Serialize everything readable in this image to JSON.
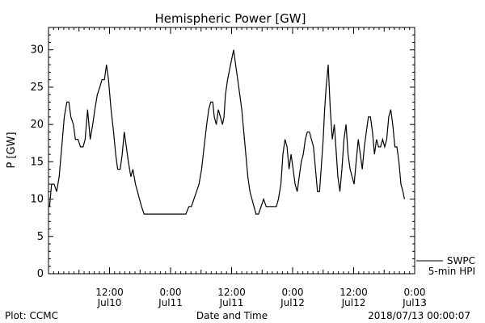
{
  "chart_data": {
    "type": "line",
    "title": "Hemispheric Power [GW]",
    "ylabel": "P [GW]",
    "xlabel": "Date and Time",
    "ylim": [
      0,
      33
    ],
    "y_ticks": [
      0,
      5,
      10,
      15,
      20,
      25,
      30
    ],
    "xlim_hours": [
      0,
      72
    ],
    "x_ticks": [
      {
        "time": "12:00",
        "day": "Jul10",
        "hour": 12
      },
      {
        "time": "0:00",
        "day": "Jul11",
        "hour": 24
      },
      {
        "time": "12:00",
        "day": "Jul11",
        "hour": 36
      },
      {
        "time": "0:00",
        "day": "Jul12",
        "hour": 48
      },
      {
        "time": "12:00",
        "day": "Jul12",
        "hour": 60
      },
      {
        "time": "0:00",
        "day": "Jul13",
        "hour": 72
      }
    ],
    "legend": {
      "position": "bottom-right",
      "entries": [
        "SWPC",
        "5-min HPI"
      ]
    },
    "footer_left": "Plot: CCMC",
    "footer_right": "2018/07/13 00:00:07",
    "series": [
      {
        "name": "SWPC",
        "color": "#000000",
        "points": [
          [
            0.2,
            9
          ],
          [
            0.6,
            12
          ],
          [
            1.1,
            12
          ],
          [
            1.6,
            11
          ],
          [
            2.1,
            13
          ],
          [
            2.6,
            17
          ],
          [
            3.1,
            21
          ],
          [
            3.6,
            23
          ],
          [
            4.0,
            23
          ],
          [
            4.4,
            21
          ],
          [
            4.9,
            20
          ],
          [
            5.3,
            18
          ],
          [
            5.8,
            18
          ],
          [
            6.3,
            17
          ],
          [
            6.8,
            17
          ],
          [
            7.2,
            18
          ],
          [
            7.7,
            22
          ],
          [
            8.2,
            18
          ],
          [
            8.7,
            20
          ],
          [
            9.1,
            22
          ],
          [
            9.6,
            24
          ],
          [
            10.1,
            25
          ],
          [
            10.5,
            26
          ],
          [
            11.0,
            26
          ],
          [
            11.4,
            28
          ],
          [
            11.8,
            26
          ],
          [
            12.3,
            22
          ],
          [
            12.8,
            19
          ],
          [
            13.2,
            16
          ],
          [
            13.6,
            14
          ],
          [
            14.1,
            14
          ],
          [
            14.5,
            16
          ],
          [
            14.9,
            19
          ],
          [
            15.3,
            17
          ],
          [
            15.7,
            15
          ],
          [
            16.2,
            13
          ],
          [
            16.6,
            14
          ],
          [
            17.1,
            12
          ],
          [
            17.5,
            11
          ],
          [
            17.9,
            10
          ],
          [
            18.3,
            9
          ],
          [
            18.8,
            8
          ],
          [
            19.5,
            8
          ],
          [
            20.5,
            8
          ],
          [
            21.5,
            8
          ],
          [
            22.5,
            8
          ],
          [
            23.5,
            8
          ],
          [
            24.5,
            8
          ],
          [
            25.5,
            8
          ],
          [
            26.5,
            8
          ],
          [
            27.0,
            8
          ],
          [
            27.6,
            9
          ],
          [
            28.1,
            9
          ],
          [
            28.6,
            10
          ],
          [
            29.1,
            11
          ],
          [
            29.6,
            12
          ],
          [
            30.1,
            14
          ],
          [
            30.6,
            17
          ],
          [
            31.1,
            20
          ],
          [
            31.5,
            22
          ],
          [
            31.9,
            23
          ],
          [
            32.3,
            23
          ],
          [
            32.6,
            21
          ],
          [
            33.0,
            20
          ],
          [
            33.4,
            22
          ],
          [
            33.8,
            21
          ],
          [
            34.2,
            20
          ],
          [
            34.5,
            21
          ],
          [
            34.8,
            24
          ],
          [
            35.2,
            26
          ],
          [
            35.5,
            27
          ],
          [
            35.8,
            28
          ],
          [
            36.1,
            29
          ],
          [
            36.4,
            30
          ],
          [
            36.8,
            28
          ],
          [
            37.2,
            26
          ],
          [
            37.6,
            24
          ],
          [
            38.0,
            22
          ],
          [
            38.4,
            19
          ],
          [
            38.8,
            16
          ],
          [
            39.2,
            13
          ],
          [
            39.6,
            11
          ],
          [
            40.0,
            10
          ],
          [
            40.4,
            9
          ],
          [
            40.8,
            8
          ],
          [
            41.3,
            8
          ],
          [
            41.8,
            9
          ],
          [
            42.3,
            10
          ],
          [
            42.8,
            9
          ],
          [
            43.3,
            9
          ],
          [
            43.8,
            9
          ],
          [
            44.3,
            9
          ],
          [
            44.8,
            9
          ],
          [
            45.2,
            10
          ],
          [
            45.7,
            12
          ],
          [
            46.1,
            16
          ],
          [
            46.5,
            18
          ],
          [
            46.9,
            17
          ],
          [
            47.3,
            14
          ],
          [
            47.7,
            16
          ],
          [
            48.1,
            14
          ],
          [
            48.5,
            12
          ],
          [
            48.9,
            11
          ],
          [
            49.3,
            13
          ],
          [
            49.7,
            15
          ],
          [
            50.1,
            16
          ],
          [
            50.5,
            18
          ],
          [
            50.9,
            19
          ],
          [
            51.3,
            19
          ],
          [
            51.7,
            18
          ],
          [
            52.1,
            17
          ],
          [
            52.5,
            14
          ],
          [
            52.9,
            11
          ],
          [
            53.3,
            11
          ],
          [
            53.7,
            15
          ],
          [
            54.0,
            18
          ],
          [
            54.3,
            22
          ],
          [
            54.6,
            25
          ],
          [
            55.0,
            28
          ],
          [
            55.4,
            22
          ],
          [
            55.8,
            18
          ],
          [
            56.2,
            20
          ],
          [
            56.5,
            17
          ],
          [
            56.9,
            13
          ],
          [
            57.3,
            11
          ],
          [
            57.7,
            14
          ],
          [
            58.1,
            18
          ],
          [
            58.5,
            20
          ],
          [
            58.9,
            16
          ],
          [
            59.3,
            14
          ],
          [
            59.7,
            13
          ],
          [
            60.1,
            12
          ],
          [
            60.5,
            15
          ],
          [
            60.9,
            18
          ],
          [
            61.3,
            16
          ],
          [
            61.7,
            14
          ],
          [
            62.1,
            17
          ],
          [
            62.5,
            19
          ],
          [
            62.9,
            21
          ],
          [
            63.3,
            21
          ],
          [
            63.7,
            19
          ],
          [
            64.1,
            16
          ],
          [
            64.5,
            18
          ],
          [
            64.9,
            17
          ],
          [
            65.3,
            17
          ],
          [
            65.7,
            18
          ],
          [
            66.1,
            17
          ],
          [
            66.5,
            18
          ],
          [
            66.9,
            21
          ],
          [
            67.3,
            22
          ],
          [
            67.7,
            20
          ],
          [
            68.1,
            17
          ],
          [
            68.5,
            17
          ],
          [
            68.9,
            15
          ],
          [
            69.3,
            12
          ],
          [
            69.7,
            11
          ],
          [
            70.0,
            10
          ]
        ]
      }
    ]
  }
}
